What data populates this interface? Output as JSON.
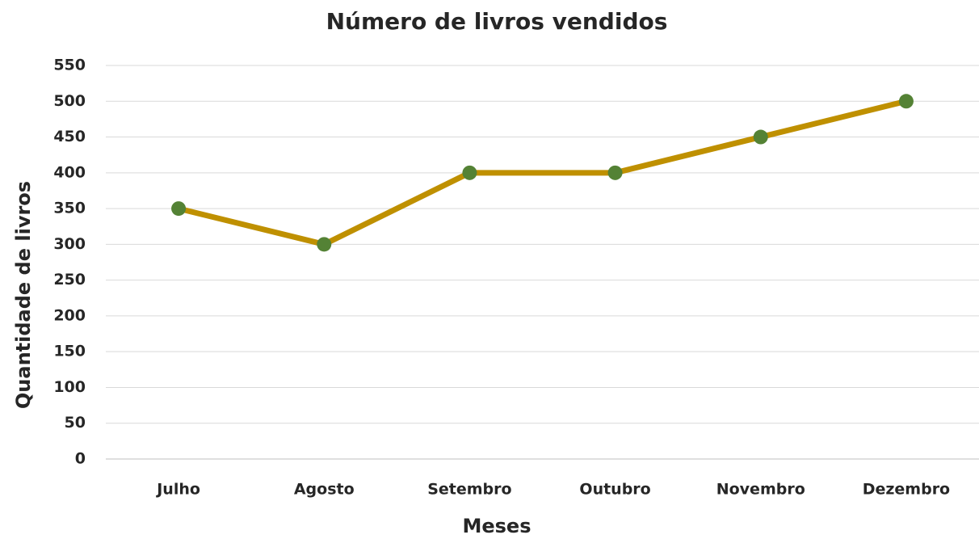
{
  "chart_data": {
    "type": "line",
    "title": "Número de livros vendidos",
    "x_label": "Meses",
    "y_label": "Quantidade de livros",
    "categories": [
      "Julho",
      "Agosto",
      "Setembro",
      "Outubro",
      "Novembro",
      "Dezembro"
    ],
    "series": [
      {
        "name": "Número de livros vendidos",
        "color": "#bf9000",
        "marker_color": "#548235",
        "values": [
          350,
          300,
          400,
          400,
          450,
          500
        ]
      }
    ],
    "ylim": [
      0,
      550
    ],
    "yticks": [
      0,
      50,
      100,
      150,
      200,
      250,
      300,
      350,
      400,
      450,
      500,
      550
    ],
    "grid": true
  }
}
